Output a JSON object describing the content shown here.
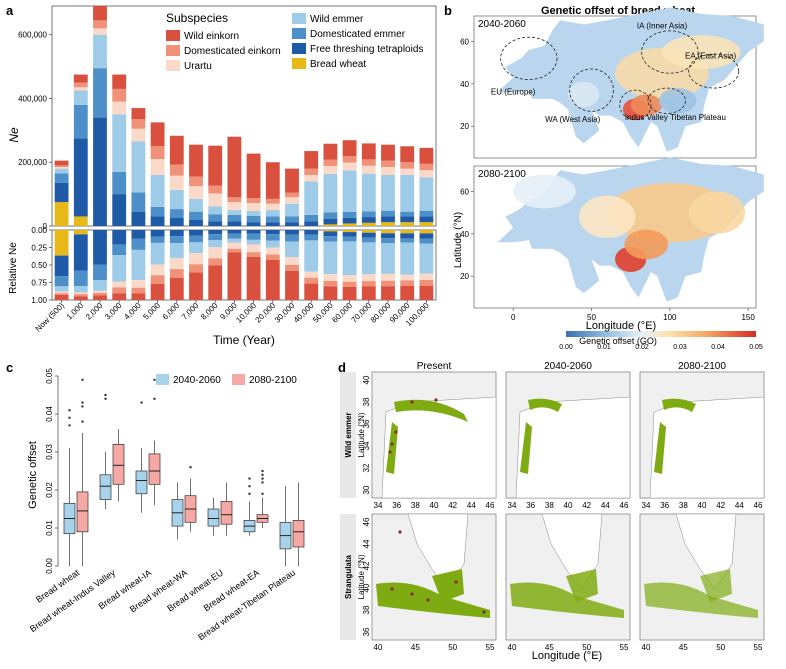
{
  "panel_labels": {
    "a": "a",
    "b": "b",
    "c": "c",
    "d": "d"
  },
  "colors": {
    "wild_einkorn": "#d9503f",
    "domesticated_einkorn": "#f0927a",
    "urartu": "#fbd9c8",
    "wild_emmer": "#9dcbe8",
    "domesticated_emmer": "#4d8fc9",
    "free_threshing": "#1f5aa6",
    "bread_wheat": "#e6b919",
    "box_early": "#a8d3ea",
    "box_late": "#f6a8a4",
    "land": "#7fab12",
    "map_bg": "#f0f0f0"
  },
  "chart_data": [
    {
      "type": "bar",
      "stacked": true,
      "id": "a_top",
      "categories": [
        "Now (500)",
        "1,000",
        "2,000",
        "3,000",
        "4,000",
        "5,000",
        "6,000",
        "7,000",
        "8,000",
        "9,000",
        "10,000",
        "20,000",
        "30,000",
        "40,000",
        "50,000",
        "60,000",
        "70,000",
        "80,000",
        "90,000",
        "100,000"
      ],
      "series": [
        {
          "name": "Bread wheat",
          "key": "bread_wheat",
          "values": [
            75000,
            30000,
            0,
            0,
            0,
            0,
            0,
            0,
            0,
            0,
            0,
            0,
            0,
            0,
            5000,
            8000,
            10000,
            12000,
            12000,
            12000
          ]
        },
        {
          "name": "Free threshing tetraploids",
          "key": "free_threshing",
          "values": [
            60000,
            245000,
            340000,
            100000,
            45000,
            30000,
            25000,
            20000,
            15000,
            15000,
            12000,
            12000,
            12000,
            15000,
            18000,
            18000,
            18000,
            18000,
            18000,
            18000
          ]
        },
        {
          "name": "Domesticated emmer",
          "key": "domesticated_emmer",
          "values": [
            30000,
            105000,
            155000,
            70000,
            60000,
            30000,
            28000,
            25000,
            22000,
            20000,
            20000,
            18000,
            18000,
            20000,
            20000,
            18000,
            18000,
            18000,
            15000,
            18000
          ]
        },
        {
          "name": "Wild emmer",
          "key": "wild_emmer",
          "values": [
            15000,
            45000,
            105000,
            180000,
            160000,
            100000,
            60000,
            40000,
            25000,
            15000,
            15000,
            20000,
            40000,
            105000,
            120000,
            130000,
            118000,
            112000,
            115000,
            105000
          ]
        },
        {
          "name": "Urartu",
          "key": "urartu",
          "values": [
            5000,
            10000,
            20000,
            40000,
            40000,
            50000,
            45000,
            40000,
            40000,
            25000,
            25000,
            20000,
            20000,
            20000,
            25000,
            25000,
            25000,
            25000,
            20000,
            22000
          ]
        },
        {
          "name": "Domesticated einkorn",
          "key": "domesticated_einkorn",
          "values": [
            5000,
            15000,
            25000,
            40000,
            30000,
            40000,
            35000,
            30000,
            25000,
            15000,
            15000,
            15000,
            15000,
            20000,
            20000,
            20000,
            20000,
            20000,
            20000,
            20000
          ]
        },
        {
          "name": "Wild einkorn",
          "key": "wild_einkorn",
          "values": [
            15000,
            25000,
            45000,
            45000,
            35000,
            75000,
            90000,
            100000,
            125000,
            190000,
            140000,
            115000,
            75000,
            55000,
            50000,
            50000,
            50000,
            50000,
            50000,
            50000
          ]
        }
      ],
      "ylabel": "Ne",
      "yticks": [
        "0",
        "200,000",
        "400,000",
        "600,000"
      ],
      "ylim": [
        0,
        690000
      ],
      "xlabel": "Time (Year)",
      "legend_title": "Subspecies",
      "legend_left": [
        "Wild einkorn",
        "Domesticated einkorn",
        "Urartu"
      ],
      "legend_right": [
        "Wild emmer",
        "Domesticated emmer",
        "Free threshing tetraploids",
        "Bread wheat"
      ]
    },
    {
      "type": "bar",
      "stacked": true,
      "id": "a_bottom",
      "note": "relative (fractions derived from the stacked values above)",
      "ylabel": "Relative Ne",
      "yticks": [
        "0.00",
        "0.25",
        "0.50",
        "0.75",
        "1.00"
      ],
      "ylim": [
        0,
        1
      ]
    },
    {
      "type": "heatmap",
      "id": "b",
      "title": "Genetic offset of bread wheat",
      "panels": [
        "2040-2060",
        "2080-2100"
      ],
      "regions": [
        "IA (Inner Asia)",
        "EA (East Asia)",
        "EU (Europe)",
        "WA (West Asia)",
        "Indus Valley",
        "Tibetan Plateau"
      ],
      "xticks": [
        "0",
        "50",
        "100",
        "150"
      ],
      "yticks": [
        "20",
        "40",
        "60"
      ],
      "xlabel": "Longitude (°E)",
      "ylabel": "Latitude (°N)",
      "colorbar_label": "Genetic offset (GO)",
      "colorbar_ticks": [
        "0.00",
        "0.01",
        "0.02",
        "0.03",
        "0.04",
        "0.05"
      ]
    },
    {
      "type": "box",
      "id": "c",
      "ylabel": "Genetic offset",
      "yticks": [
        "0.00",
        "0.01",
        "0.02",
        "0.03",
        "0.04",
        "0.05"
      ],
      "ylim": [
        0,
        0.05
      ],
      "series_names": [
        "2040-2060",
        "2080-2100"
      ],
      "categories": [
        "Bread wheat",
        "Bread wheat-Indus Valley",
        "Bread wheat-IA",
        "Bread wheat-WA",
        "Bread wheat-EU",
        "Bread wheat-EA",
        "Bread wheat-Tibetan Plateau"
      ],
      "boxes": [
        [
          {
            "min": 0.0,
            "q1": 0.0085,
            "med": 0.0125,
            "q3": 0.0165,
            "max": 0.031,
            "out": [
              0.037,
              0.039,
              0.041
            ]
          },
          {
            "min": 0.0,
            "q1": 0.009,
            "med": 0.0145,
            "q3": 0.0195,
            "max": 0.035,
            "out": [
              0.038,
              0.042,
              0.043,
              0.049
            ]
          }
        ],
        [
          {
            "min": 0.015,
            "q1": 0.0175,
            "med": 0.021,
            "q3": 0.024,
            "max": 0.03,
            "out": [
              0.044,
              0.045
            ]
          },
          {
            "min": 0.017,
            "q1": 0.0215,
            "med": 0.0265,
            "q3": 0.032,
            "max": 0.036,
            "out": []
          }
        ],
        [
          {
            "min": 0.014,
            "q1": 0.019,
            "med": 0.0225,
            "q3": 0.025,
            "max": 0.031,
            "out": [
              0.043
            ]
          },
          {
            "min": 0.016,
            "q1": 0.0215,
            "med": 0.025,
            "q3": 0.0295,
            "max": 0.033,
            "out": [
              0.044,
              0.049
            ]
          }
        ],
        [
          {
            "min": 0.007,
            "q1": 0.0105,
            "med": 0.014,
            "q3": 0.0175,
            "max": 0.022,
            "out": []
          },
          {
            "min": 0.009,
            "q1": 0.0115,
            "med": 0.015,
            "q3": 0.0185,
            "max": 0.023,
            "out": [
              0.026
            ]
          }
        ],
        [
          {
            "min": 0.008,
            "q1": 0.0105,
            "med": 0.0125,
            "q3": 0.015,
            "max": 0.018,
            "out": []
          },
          {
            "min": 0.008,
            "q1": 0.011,
            "med": 0.0135,
            "q3": 0.017,
            "max": 0.022,
            "out": []
          }
        ],
        [
          {
            "min": 0.008,
            "q1": 0.009,
            "med": 0.0105,
            "q3": 0.012,
            "max": 0.017,
            "out": [
              0.019,
              0.021,
              0.023
            ]
          },
          {
            "min": 0.01,
            "q1": 0.0115,
            "med": 0.0125,
            "q3": 0.0135,
            "max": 0.018,
            "out": [
              0.019,
              0.022,
              0.023,
              0.024,
              0.025
            ]
          }
        ],
        [
          {
            "min": 0.0,
            "q1": 0.0045,
            "med": 0.008,
            "q3": 0.0115,
            "max": 0.021,
            "out": []
          },
          {
            "min": 0.0,
            "q1": 0.005,
            "med": 0.009,
            "q3": 0.012,
            "max": 0.022,
            "out": []
          }
        ]
      ]
    },
    {
      "type": "other",
      "id": "d",
      "columns": [
        "Present",
        "2040-2060",
        "2080-2100"
      ],
      "rows": [
        "Wild emmer",
        "Strangulata"
      ],
      "row1_xticks": [
        "34",
        "36",
        "38",
        "40",
        "42",
        "44",
        "46"
      ],
      "row1_yticks": [
        "30",
        "32",
        "34",
        "36",
        "38",
        "40"
      ],
      "row2_xticks": [
        "40",
        "45",
        "50",
        "55"
      ],
      "row2_yticks": [
        "36",
        "38",
        "40",
        "42",
        "44",
        "46"
      ],
      "xlabel": "Longitude (°E)",
      "ylabel": "Latitude (°N)"
    }
  ]
}
